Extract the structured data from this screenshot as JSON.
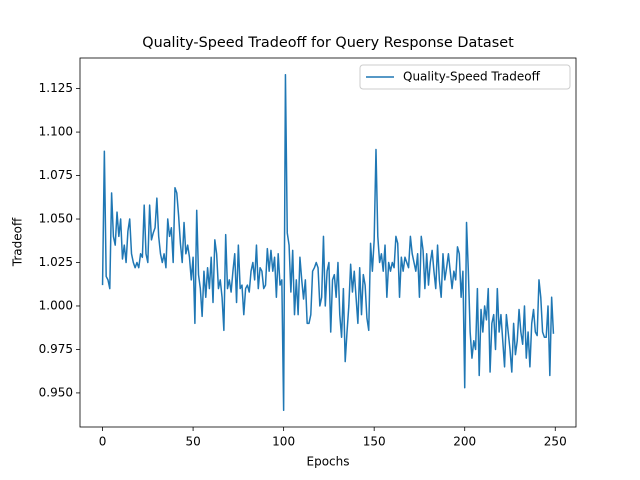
{
  "chart_data": {
    "type": "line",
    "title": "Quality-Speed Tradeoff for Query Response Dataset",
    "xlabel": "Epochs",
    "ylabel": "Tradeoff",
    "x": [
      0,
      1,
      2,
      3,
      4,
      5,
      6,
      7,
      8,
      9,
      10,
      11,
      12,
      13,
      14,
      15,
      16,
      17,
      18,
      19,
      20,
      21,
      22,
      23,
      24,
      25,
      26,
      27,
      28,
      29,
      30,
      31,
      32,
      33,
      34,
      35,
      36,
      37,
      38,
      39,
      40,
      41,
      42,
      43,
      44,
      45,
      46,
      47,
      48,
      49,
      50,
      51,
      52,
      53,
      54,
      55,
      56,
      57,
      58,
      59,
      60,
      61,
      62,
      63,
      64,
      65,
      66,
      67,
      68,
      69,
      70,
      71,
      72,
      73,
      74,
      75,
      76,
      77,
      78,
      79,
      80,
      81,
      82,
      83,
      84,
      85,
      86,
      87,
      88,
      89,
      90,
      91,
      92,
      93,
      94,
      95,
      96,
      97,
      98,
      99,
      100,
      101,
      102,
      103,
      104,
      105,
      106,
      107,
      108,
      109,
      110,
      111,
      112,
      113,
      114,
      115,
      116,
      117,
      118,
      119,
      120,
      121,
      122,
      123,
      124,
      125,
      126,
      127,
      128,
      129,
      130,
      131,
      132,
      133,
      134,
      135,
      136,
      137,
      138,
      139,
      140,
      141,
      142,
      143,
      144,
      145,
      146,
      147,
      148,
      149,
      150,
      151,
      152,
      153,
      154,
      155,
      156,
      157,
      158,
      159,
      160,
      161,
      162,
      163,
      164,
      165,
      166,
      167,
      168,
      169,
      170,
      171,
      172,
      173,
      174,
      175,
      176,
      177,
      178,
      179,
      180,
      181,
      182,
      183,
      184,
      185,
      186,
      187,
      188,
      189,
      190,
      191,
      192,
      193,
      194,
      195,
      196,
      197,
      198,
      199,
      200,
      201,
      202,
      203,
      204,
      205,
      206,
      207,
      208,
      209,
      210,
      211,
      212,
      213,
      214,
      215,
      216,
      217,
      218,
      219,
      220,
      221,
      222,
      223,
      224,
      225,
      226,
      227,
      228,
      229,
      230,
      231,
      232,
      233,
      234,
      235,
      236,
      237,
      238,
      239,
      240,
      241,
      242,
      243,
      244,
      245,
      246,
      247,
      248,
      249
    ],
    "series": [
      {
        "name": "Quality-Speed Tradeoff",
        "color": "#1f77b4",
        "values": [
          1.012,
          1.089,
          1.017,
          1.015,
          1.01,
          1.065,
          1.04,
          1.035,
          1.054,
          1.04,
          1.05,
          1.027,
          1.035,
          1.025,
          1.043,
          1.05,
          1.03,
          1.025,
          1.022,
          1.025,
          1.022,
          1.03,
          1.028,
          1.058,
          1.03,
          1.025,
          1.058,
          1.038,
          1.042,
          1.045,
          1.062,
          1.04,
          1.03,
          1.025,
          1.03,
          1.022,
          1.05,
          1.04,
          1.045,
          1.025,
          1.068,
          1.065,
          1.052,
          1.036,
          1.025,
          1.048,
          1.03,
          1.035,
          1.028,
          1.015,
          1.028,
          0.99,
          1.055,
          1.018,
          1.01,
          0.994,
          1.02,
          1.005,
          1.022,
          1.01,
          1.028,
          1.002,
          1.038,
          1.03,
          1.01,
          1.015,
          1.005,
          0.986,
          1.041,
          1.01,
          1.015,
          1.008,
          1.02,
          1.03,
          1.002,
          1.035,
          1.01,
          1.012,
          0.995,
          1.01,
          1.012,
          1.008,
          1.02,
          1.025,
          1.015,
          1.035,
          1.01,
          1.022,
          1.02,
          1.01,
          1.012,
          1.033,
          1.02,
          1.032,
          1.02,
          1.028,
          1.005,
          1.03,
          1.012,
          1.015,
          0.94,
          1.133,
          1.042,
          1.035,
          1.008,
          1.032,
          0.995,
          1.015,
          0.995,
          1.028,
          1.015,
          1.004,
          1.015,
          0.99,
          0.99,
          0.995,
          1.02,
          1.022,
          1.025,
          1.022,
          1.0,
          1.005,
          1.04,
          1.0,
          1.02,
          1.025,
          0.985,
          1.015,
          1.018,
          1.005,
          1.025,
          0.995,
          0.982,
          1.01,
          0.968,
          0.985,
          1.0,
          1.024,
          1.008,
          1.02,
          1.005,
          0.99,
          1.022,
          0.995,
          1.018,
          1.012,
          0.993,
          0.986,
          1.036,
          1.02,
          1.038,
          1.09,
          1.04,
          1.025,
          1.03,
          1.02,
          1.035,
          1.005,
          1.025,
          1.02,
          1.025,
          1.022,
          1.04,
          1.036,
          1.005,
          1.028,
          1.02,
          1.028,
          1.025,
          1.022,
          1.04,
          1.03,
          1.025,
          1.02,
          1.03,
          1.005,
          1.04,
          1.032,
          1.01,
          1.03,
          1.012,
          1.025,
          1.032,
          1.02,
          1.01,
          1.035,
          1.015,
          1.005,
          1.03,
          1.015,
          1.022,
          1.03,
          1.02,
          1.01,
          1.02,
          1.015,
          1.034,
          1.03,
          1.005,
          1.02,
          0.953,
          1.048,
          1.02,
          0.985,
          0.97,
          0.98,
          0.975,
          1.01,
          0.96,
          0.998,
          0.985,
          1.0,
          0.992,
          1.01,
          0.962,
          0.99,
          0.995,
          0.975,
          1.01,
          0.985,
          0.995,
          0.98,
          0.965,
          0.995,
          0.985,
          0.975,
          0.962,
          0.99,
          0.972,
          0.98,
          0.998,
          0.985,
          0.978,
          1.0,
          0.97,
          0.985,
          0.965,
          0.99,
          0.998,
          0.985,
          0.983,
          1.015,
          1.005,
          0.985,
          0.982,
          0.982,
          1.0,
          0.96,
          1.005,
          0.984
        ]
      }
    ],
    "xlim": [
      -12.45,
      261.45
    ],
    "ylim": [
      0.9304,
      1.1426
    ],
    "xticks": [
      0,
      50,
      100,
      150,
      200,
      250
    ],
    "yticks": [
      {
        "value": 0.95,
        "label": "0.950"
      },
      {
        "value": 0.975,
        "label": "0.975"
      },
      {
        "value": 1.0,
        "label": "1.000"
      },
      {
        "value": 1.025,
        "label": "1.025"
      },
      {
        "value": 1.05,
        "label": "1.050"
      },
      {
        "value": 1.075,
        "label": "1.075"
      },
      {
        "value": 1.1,
        "label": "1.100"
      },
      {
        "value": 1.125,
        "label": "1.125"
      }
    ],
    "legend": "upper right"
  }
}
